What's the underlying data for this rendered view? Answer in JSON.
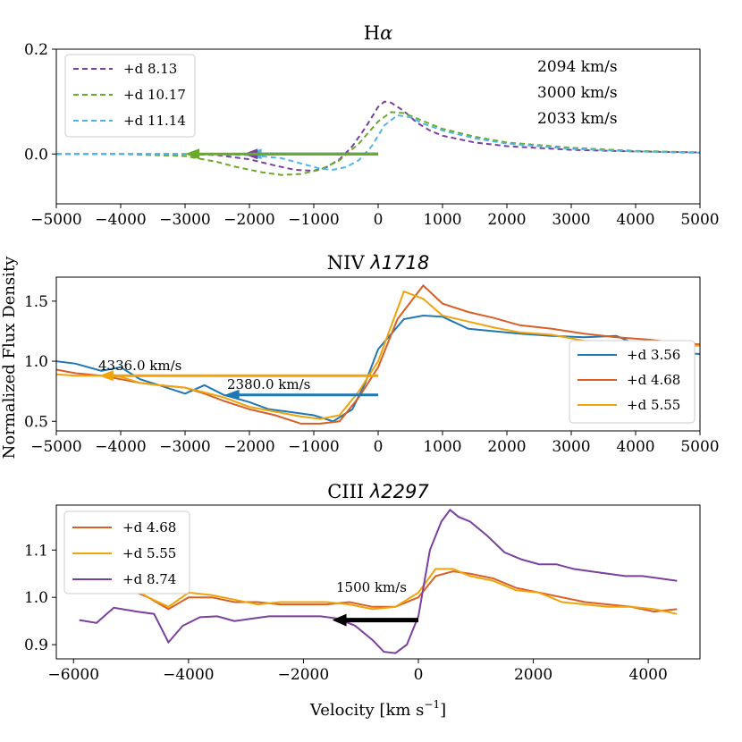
{
  "figure": {
    "ylabel": "Normalized Flux Density",
    "xlabel": "Velocity [km s",
    "xlabel_sup": "−1",
    "xlabel_close": "]"
  },
  "chart_data": [
    {
      "type": "line",
      "title": "Hα",
      "xlim": [
        -5000,
        5000
      ],
      "ylim": [
        -0.095,
        0.2
      ],
      "xticks": [
        -5000,
        -4000,
        -3000,
        -2000,
        -1000,
        0,
        1000,
        2000,
        3000,
        4000,
        5000
      ],
      "xtick_labels": [
        "−5000",
        "−4000",
        "−3000",
        "−2000",
        "−1000",
        "0",
        "1000",
        "2000",
        "3000",
        "4000",
        "5000"
      ],
      "yticks": [
        0.0,
        0.2
      ],
      "ytick_labels": [
        "0.0",
        "0.2"
      ],
      "legend_position": "top-left",
      "series": [
        {
          "name": "+d 8.13",
          "color": "#7b3f9e",
          "dashed": true,
          "x": [
            -5000,
            -4000,
            -3000,
            -2500,
            -2000,
            -1600,
            -1300,
            -1000,
            -800,
            -600,
            -400,
            -200,
            0,
            100,
            200,
            400,
            600,
            800,
            1000,
            1500,
            2000,
            3000,
            4000,
            5000
          ],
          "y": [
            0.0,
            0.0,
            0.0,
            -0.002,
            -0.01,
            -0.022,
            -0.03,
            -0.032,
            -0.025,
            -0.01,
            0.015,
            0.05,
            0.09,
            0.1,
            0.098,
            0.082,
            0.06,
            0.045,
            0.035,
            0.022,
            0.015,
            0.008,
            0.005,
            0.003
          ]
        },
        {
          "name": "+d 10.17",
          "color": "#6aaa2a",
          "dashed": true,
          "x": [
            -5000,
            -4000,
            -3000,
            -2500,
            -2200,
            -1800,
            -1500,
            -1200,
            -900,
            -600,
            -300,
            0,
            200,
            400,
            600,
            800,
            1000,
            1500,
            2000,
            3000,
            4000,
            5000
          ],
          "y": [
            0.0,
            0.0,
            -0.004,
            -0.015,
            -0.025,
            -0.035,
            -0.04,
            -0.038,
            -0.03,
            -0.012,
            0.02,
            0.062,
            0.08,
            0.078,
            0.068,
            0.058,
            0.048,
            0.033,
            0.022,
            0.012,
            0.006,
            0.003
          ]
        },
        {
          "name": "+d 11.14",
          "color": "#4fb7e8",
          "dashed": true,
          "x": [
            -5000,
            -4000,
            -3000,
            -2000,
            -1500,
            -1200,
            -900,
            -700,
            -500,
            -300,
            -100,
            100,
            300,
            500,
            700,
            1000,
            1500,
            2000,
            3000,
            4000,
            5000
          ],
          "y": [
            0.0,
            0.0,
            0.0,
            -0.002,
            -0.008,
            -0.018,
            -0.028,
            -0.03,
            -0.025,
            -0.012,
            0.015,
            0.055,
            0.074,
            0.07,
            0.058,
            0.045,
            0.03,
            0.02,
            0.01,
            0.005,
            0.002
          ]
        }
      ],
      "arrows": [
        {
          "from": 0,
          "to": -2033,
          "y": 0.0,
          "color": "#4fb7e8"
        },
        {
          "from": 0,
          "to": -2094,
          "y": 0.0,
          "color": "#7b3f9e"
        },
        {
          "from": 0,
          "to": -3000,
          "y": 0.0,
          "color": "#6aaa2a"
        }
      ],
      "velocity_labels": [
        {
          "text": "2094 km/s",
          "color": "#7b3f9e"
        },
        {
          "text": "3000 km/s",
          "color": "#6aaa2a"
        },
        {
          "text": "2033 km/s",
          "color": "#4fb7e8"
        }
      ]
    },
    {
      "type": "line",
      "title": "NIV ",
      "title_symbol": "λ1718",
      "xlim": [
        -5000,
        5000
      ],
      "ylim": [
        0.42,
        1.7
      ],
      "xticks": [
        -5000,
        -4000,
        -3000,
        -2000,
        -1000,
        0,
        1000,
        2000,
        3000,
        4000,
        5000
      ],
      "xtick_labels": [
        "−5000",
        "−4000",
        "−3000",
        "−2000",
        "−1000",
        "0",
        "1000",
        "2000",
        "3000",
        "4000",
        "5000"
      ],
      "yticks": [
        0.5,
        1.0,
        1.5
      ],
      "ytick_labels": [
        "0.5",
        "1.0",
        "1.5"
      ],
      "legend_position": "center-right",
      "series": [
        {
          "name": "+d 3.56",
          "color": "#1f77b4",
          "x": [
            -5000,
            -4700,
            -4300,
            -4000,
            -3700,
            -3400,
            -3000,
            -2700,
            -2400,
            -2000,
            -1700,
            -1400,
            -1000,
            -700,
            -400,
            -200,
            0,
            400,
            700,
            1000,
            1400,
            1800,
            2200,
            2700,
            3200,
            3700,
            4200,
            4700,
            5000
          ],
          "y": [
            1.0,
            0.98,
            0.92,
            0.95,
            0.85,
            0.8,
            0.73,
            0.8,
            0.72,
            0.66,
            0.6,
            0.58,
            0.55,
            0.5,
            0.6,
            0.82,
            1.1,
            1.35,
            1.38,
            1.37,
            1.27,
            1.25,
            1.23,
            1.21,
            1.2,
            1.21,
            1.1,
            1.07,
            1.06
          ]
        },
        {
          "name": "+d 4.68",
          "color": "#d95f25",
          "x": [
            -5000,
            -4700,
            -4300,
            -4000,
            -3700,
            -3400,
            -3000,
            -2700,
            -2400,
            -2000,
            -1600,
            -1200,
            -900,
            -600,
            -300,
            0,
            300,
            700,
            1000,
            1400,
            1800,
            2200,
            2700,
            3200,
            3700,
            4200,
            4700,
            5000
          ],
          "y": [
            0.93,
            0.9,
            0.88,
            0.85,
            0.82,
            0.8,
            0.78,
            0.73,
            0.67,
            0.6,
            0.55,
            0.48,
            0.48,
            0.5,
            0.7,
            0.95,
            1.35,
            1.63,
            1.48,
            1.41,
            1.36,
            1.3,
            1.27,
            1.23,
            1.2,
            1.18,
            1.15,
            1.14
          ]
        },
        {
          "name": "+d 5.55",
          "color": "#f0a30a",
          "x": [
            -5000,
            -4700,
            -4300,
            -4000,
            -3700,
            -3400,
            -3000,
            -2700,
            -2400,
            -2000,
            -1600,
            -1200,
            -900,
            -600,
            -300,
            0,
            400,
            700,
            1000,
            1400,
            1800,
            2200,
            2700,
            3200,
            3700,
            4200,
            4700,
            5000
          ],
          "y": [
            0.89,
            0.88,
            0.88,
            0.87,
            0.82,
            0.8,
            0.78,
            0.74,
            0.7,
            0.62,
            0.58,
            0.54,
            0.52,
            0.55,
            0.75,
            1.0,
            1.58,
            1.52,
            1.38,
            1.33,
            1.28,
            1.24,
            1.22,
            1.17,
            1.16,
            1.16,
            1.13,
            1.13
          ]
        }
      ],
      "arrows": [
        {
          "from": 0,
          "to": -4336,
          "y": 0.88,
          "color": "#f0a30a",
          "label": "4336.0 km/s"
        },
        {
          "from": 0,
          "to": -2380,
          "y": 0.72,
          "color": "#1f77b4",
          "label": "2380.0 km/s"
        }
      ]
    },
    {
      "type": "line",
      "title": "CIII ",
      "title_symbol": "λ2297",
      "xlim": [
        -6300,
        4900
      ],
      "ylim": [
        0.87,
        1.195
      ],
      "xticks": [
        -6000,
        -4000,
        -2000,
        0,
        2000,
        4000
      ],
      "xtick_labels": [
        "−6000",
        "−4000",
        "−2000",
        "0",
        "2000",
        "4000"
      ],
      "yticks": [
        0.9,
        1.0,
        1.1
      ],
      "ytick_labels": [
        "0.9",
        "1.0",
        "1.1"
      ],
      "legend_position": "top-left",
      "series": [
        {
          "name": "+d 4.68",
          "color": "#d95f25",
          "x": [
            -5900,
            -5500,
            -5100,
            -4700,
            -4350,
            -4000,
            -3600,
            -3200,
            -2800,
            -2400,
            -2000,
            -1600,
            -1200,
            -800,
            -400,
            0,
            300,
            600,
            900,
            1300,
            1700,
            2100,
            2500,
            2900,
            3300,
            3700,
            4100,
            4500
          ],
          "y": [
            1.02,
            1.03,
            1.02,
            1.0,
            0.975,
            1.0,
            1.0,
            0.99,
            0.99,
            0.985,
            0.985,
            0.985,
            0.99,
            0.98,
            0.98,
            1.0,
            1.045,
            1.055,
            1.05,
            1.04,
            1.02,
            1.01,
            1.0,
            0.99,
            0.985,
            0.98,
            0.97,
            0.975
          ]
        },
        {
          "name": "+d 5.55",
          "color": "#f0a30a",
          "x": [
            -5900,
            -5500,
            -5100,
            -4700,
            -4350,
            -4000,
            -3600,
            -3200,
            -2800,
            -2400,
            -2000,
            -1600,
            -1200,
            -800,
            -400,
            0,
            300,
            600,
            900,
            1300,
            1700,
            2100,
            2500,
            2900,
            3300,
            3700,
            4100,
            4500
          ],
          "y": [
            1.01,
            1.04,
            1.03,
            1.0,
            0.98,
            1.01,
            1.005,
            0.995,
            0.985,
            0.99,
            0.99,
            0.99,
            0.985,
            0.975,
            0.98,
            1.01,
            1.06,
            1.06,
            1.045,
            1.035,
            1.015,
            1.01,
            0.99,
            0.985,
            0.98,
            0.98,
            0.975,
            0.965
          ]
        },
        {
          "name": "+d 8.74",
          "color": "#7b3f9e",
          "x": [
            -5900,
            -5600,
            -5300,
            -4900,
            -4600,
            -4350,
            -4100,
            -3800,
            -3500,
            -3200,
            -2900,
            -2600,
            -2300,
            -2000,
            -1700,
            -1400,
            -1100,
            -800,
            -600,
            -400,
            -200,
            0,
            200,
            400,
            550,
            700,
            900,
            1200,
            1500,
            1800,
            2100,
            2400,
            2700,
            3000,
            3300,
            3600,
            3900,
            4200,
            4500
          ],
          "y": [
            0.952,
            0.946,
            0.978,
            0.97,
            0.965,
            0.905,
            0.94,
            0.958,
            0.96,
            0.95,
            0.955,
            0.96,
            0.96,
            0.96,
            0.96,
            0.955,
            0.94,
            0.91,
            0.885,
            0.882,
            0.9,
            0.96,
            1.1,
            1.16,
            1.185,
            1.17,
            1.16,
            1.13,
            1.095,
            1.08,
            1.07,
            1.07,
            1.06,
            1.055,
            1.05,
            1.045,
            1.045,
            1.04,
            1.035
          ]
        }
      ],
      "arrows": [
        {
          "from": 0,
          "to": -1500,
          "y": 0.952,
          "color": "#000000",
          "label": "1500 km/s"
        }
      ]
    }
  ]
}
